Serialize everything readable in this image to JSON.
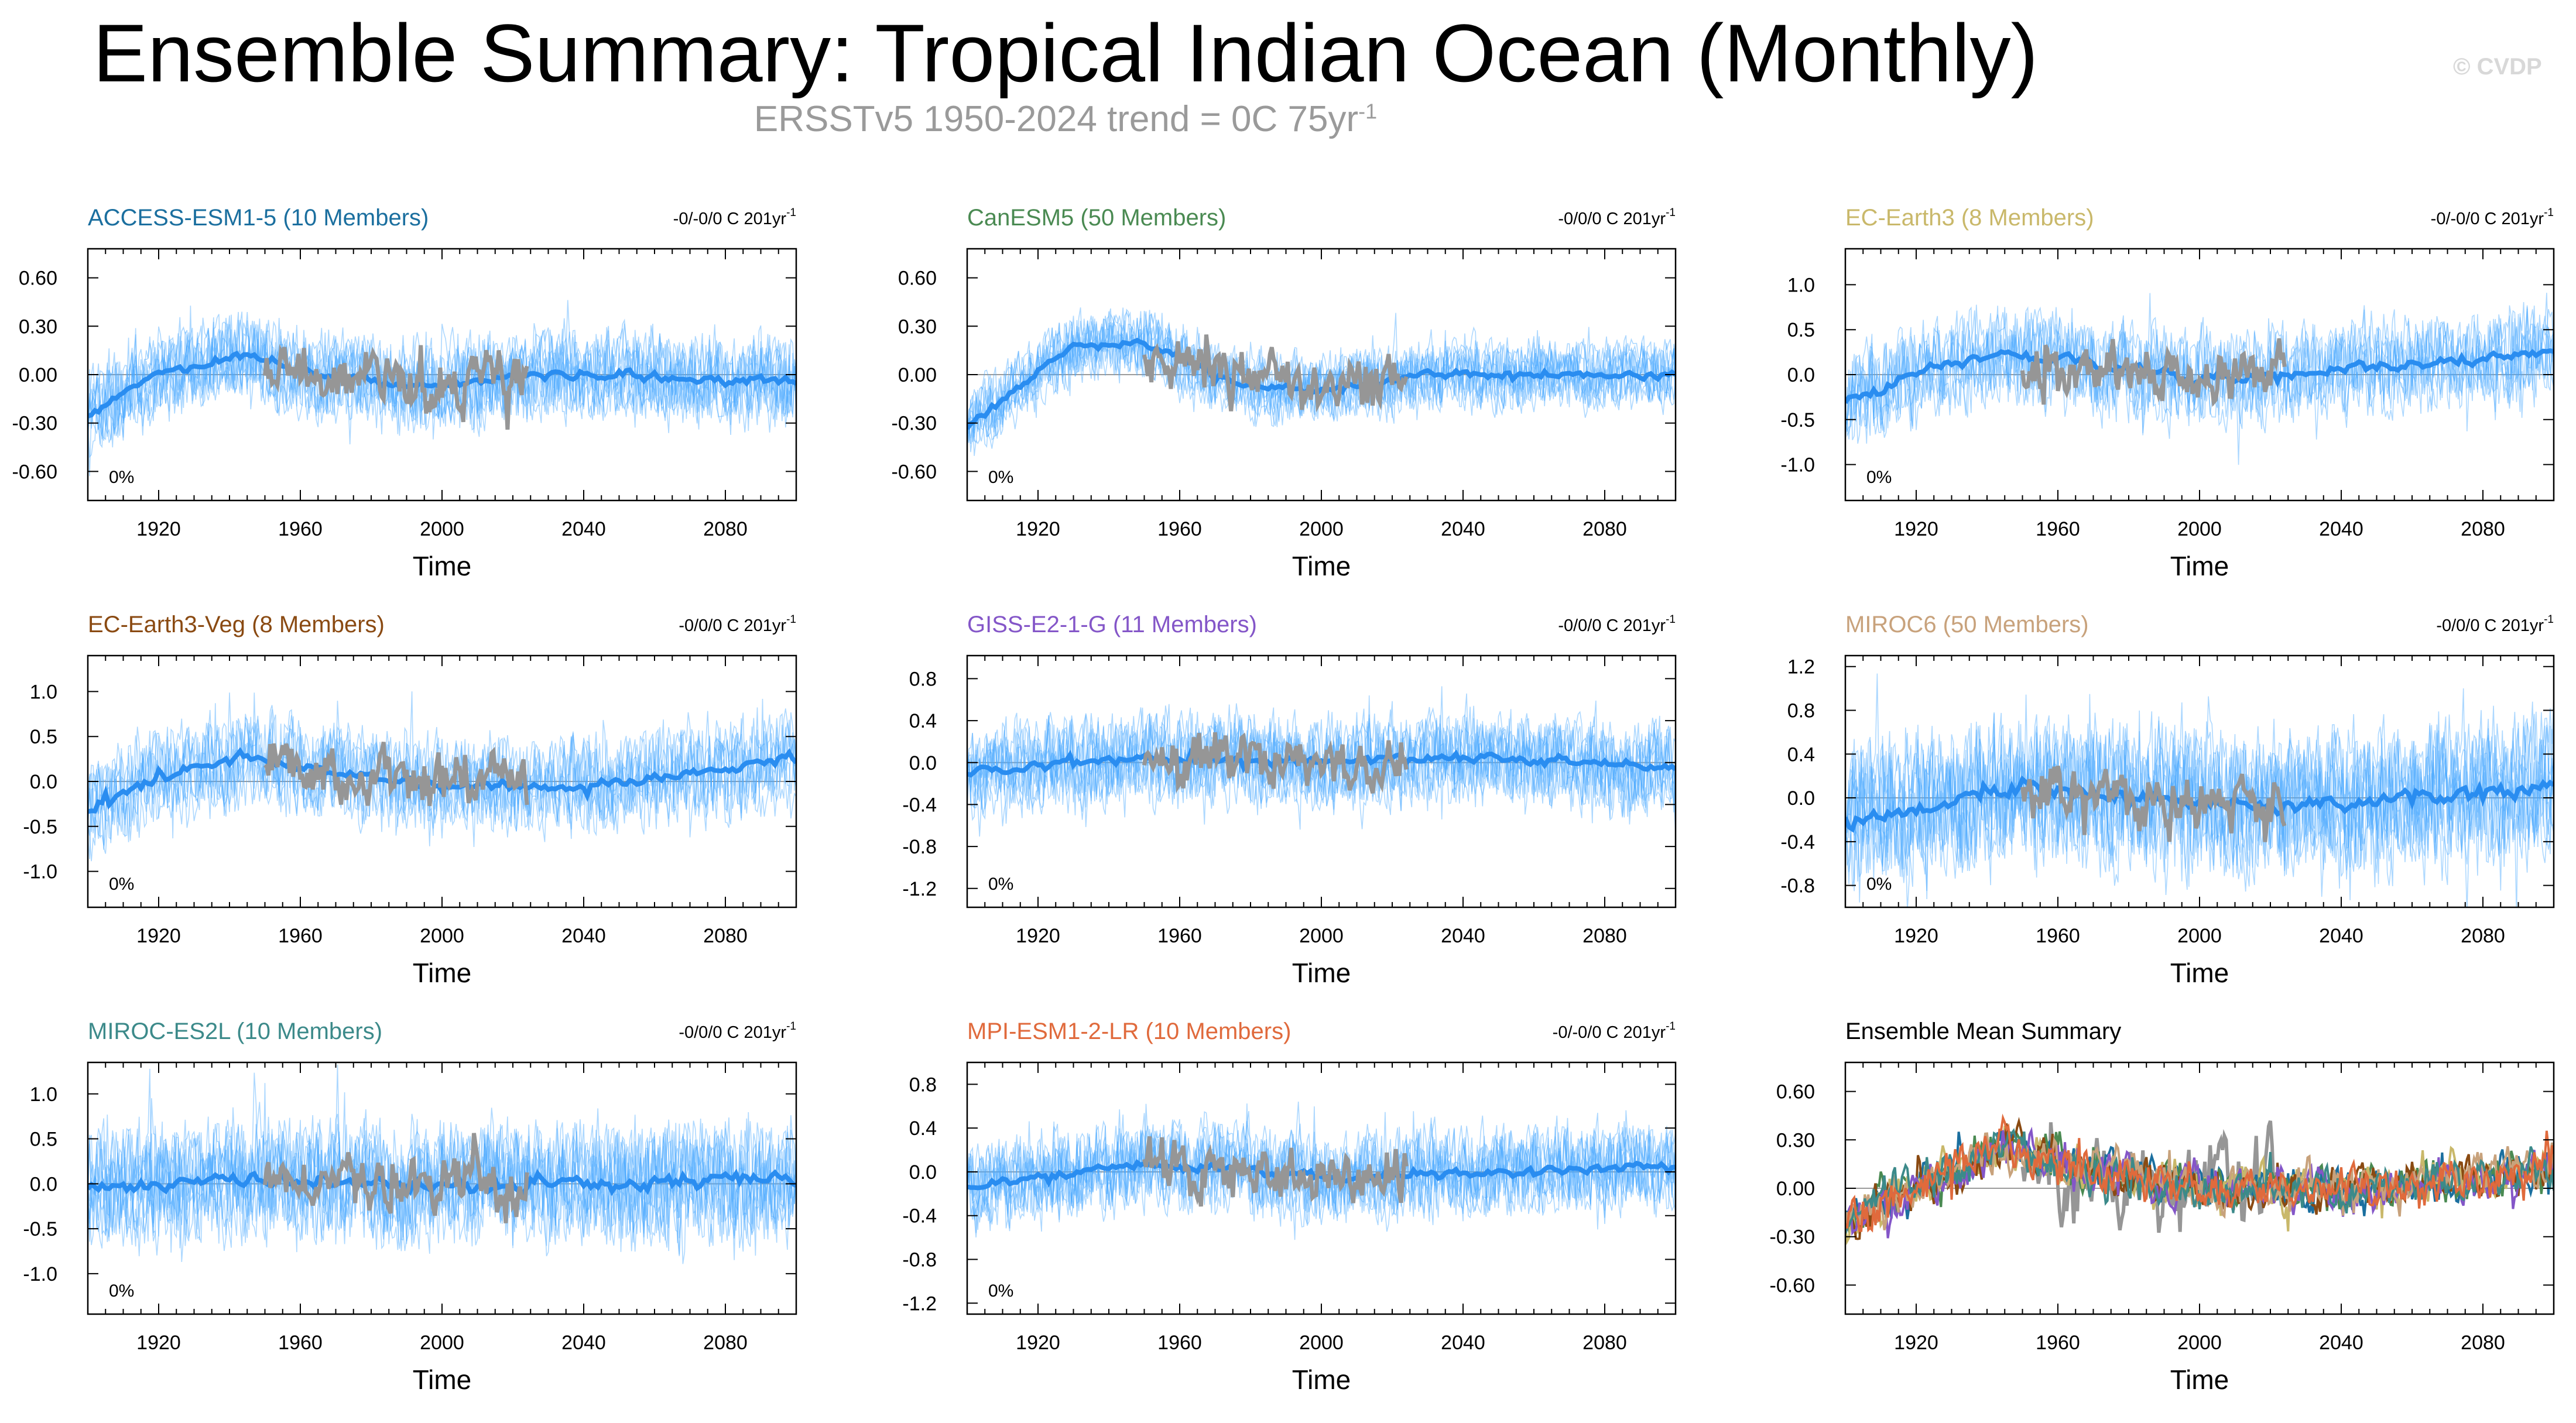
{
  "title": "Ensemble Summary: Tropical Indian Ocean (Monthly)",
  "subtitle_base": "ERSSTv5 1950-2024 trend = 0C 75yr",
  "subtitle_sup": "-1",
  "copyright": "© CVDP",
  "colors": {
    "member": "#4aa8ff",
    "ensemble_mean": "#2a8df0",
    "observations": "#969696"
  },
  "chart_data": [
    {
      "type": "line",
      "title": "ACCESS-ESM1-5 (10 Members)",
      "title_color": "#1b6f9f",
      "trend_label": "-0/-0/0 C 201yr",
      "trend_sup": "-1",
      "percent_label": "0%",
      "xlabel": "Time",
      "xlim": [
        1900,
        2100
      ],
      "xticks": [
        1920,
        1960,
        2000,
        2040,
        2080
      ],
      "ylim": [
        -0.78,
        0.78
      ],
      "yticks": [
        -0.6,
        -0.3,
        0.0,
        0.3,
        0.6
      ],
      "ytick_labels": [
        "-0.60",
        "-0.30",
        "0.00",
        "0.30",
        "0.60"
      ],
      "members": 10,
      "member_amplitude": 0.2,
      "mean_profile": {
        "x": [
          1900,
          1920,
          1945,
          1960,
          1990,
          2030,
          2100
        ],
        "y": [
          -0.25,
          0.0,
          0.12,
          0.02,
          -0.08,
          0.0,
          -0.05
        ]
      },
      "obs_range": [
        1950,
        2024
      ],
      "obs_amplitude": 0.45
    },
    {
      "type": "line",
      "title": "CanESM5 (50 Members)",
      "title_color": "#4a8a52",
      "trend_label": "-0/0/0 C 201yr",
      "trend_sup": "-1",
      "percent_label": "0%",
      "xlabel": "Time",
      "xlim": [
        1900,
        2100
      ],
      "xticks": [
        1920,
        1960,
        2000,
        2040,
        2080
      ],
      "ylim": [
        -0.78,
        0.78
      ],
      "yticks": [
        -0.6,
        -0.3,
        0.0,
        0.3,
        0.6
      ],
      "ytick_labels": [
        "-0.60",
        "-0.30",
        "0.00",
        "0.30",
        "0.60"
      ],
      "members": 50,
      "member_amplitude": 0.16,
      "mean_profile": {
        "x": [
          1900,
          1930,
          1950,
          1975,
          2000,
          2030,
          2100
        ],
        "y": [
          -0.32,
          0.18,
          0.2,
          -0.05,
          -0.1,
          0.0,
          0.0
        ]
      },
      "obs_range": [
        1950,
        2024
      ],
      "obs_amplitude": 0.45
    },
    {
      "type": "line",
      "title": "EC-Earth3 (8 Members)",
      "title_color": "#c9b86a",
      "trend_label": "-0/-0/0 C 201yr",
      "trend_sup": "-1",
      "percent_label": "0%",
      "xlabel": "Time",
      "xlim": [
        1900,
        2100
      ],
      "xticks": [
        1920,
        1960,
        2000,
        2040,
        2080
      ],
      "ylim": [
        -1.4,
        1.4
      ],
      "yticks": [
        -1.0,
        -0.5,
        0.0,
        0.5,
        1.0
      ],
      "ytick_labels": [
        "-1.0",
        "-0.5",
        "0.0",
        "0.5",
        "1.0"
      ],
      "members": 8,
      "member_amplitude": 0.4,
      "mean_profile": {
        "x": [
          1900,
          1920,
          1945,
          1970,
          2000,
          2040,
          2100
        ],
        "y": [
          -0.3,
          0.0,
          0.25,
          0.1,
          -0.05,
          0.05,
          0.25
        ]
      },
      "obs_range": [
        1950,
        2024
      ],
      "obs_amplitude": 0.45
    },
    {
      "type": "line",
      "title": "EC-Earth3-Veg (8 Members)",
      "title_color": "#8a4a12",
      "trend_label": "-0/0/0 C 201yr",
      "trend_sup": "-1",
      "percent_label": "0%",
      "xlabel": "Time",
      "xlim": [
        1900,
        2100
      ],
      "xticks": [
        1920,
        1960,
        2000,
        2040,
        2080
      ],
      "ylim": [
        -1.4,
        1.4
      ],
      "yticks": [
        -1.0,
        -0.5,
        0.0,
        0.5,
        1.0
      ],
      "ytick_labels": [
        "-1.0",
        "-0.5",
        "0.0",
        "0.5",
        "1.0"
      ],
      "members": 8,
      "member_amplitude": 0.4,
      "mean_profile": {
        "x": [
          1900,
          1920,
          1945,
          1970,
          2000,
          2040,
          2100
        ],
        "y": [
          -0.35,
          0.05,
          0.3,
          0.1,
          -0.05,
          -0.05,
          0.25
        ]
      },
      "obs_range": [
        1950,
        2024
      ],
      "obs_amplitude": 0.45
    },
    {
      "type": "line",
      "title": "GISS-E2-1-G (11 Members)",
      "title_color": "#8456c8",
      "trend_label": "-0/0/0 C 201yr",
      "trend_sup": "-1",
      "percent_label": "0%",
      "xlabel": "Time",
      "xlim": [
        1900,
        2100
      ],
      "xticks": [
        1920,
        1960,
        2000,
        2040,
        2080
      ],
      "ylim": [
        -1.38,
        1.02
      ],
      "yticks": [
        -1.2,
        -0.8,
        -0.4,
        0.0,
        0.4,
        0.8
      ],
      "ytick_labels": [
        "-1.2",
        "-0.8",
        "-0.4",
        "0.0",
        "0.4",
        "0.8"
      ],
      "members": 11,
      "member_amplitude": 0.32,
      "mean_profile": {
        "x": [
          1900,
          1950,
          2000,
          2050,
          2100
        ],
        "y": [
          -0.1,
          0.05,
          0.0,
          0.05,
          -0.05
        ]
      },
      "obs_range": [
        1950,
        2024
      ],
      "obs_amplitude": 0.45
    },
    {
      "type": "line",
      "title": "MIROC6 (50 Members)",
      "title_color": "#c8a27c",
      "trend_label": "-0/0/0 C 201yr",
      "trend_sup": "-1",
      "percent_label": "0%",
      "xlabel": "Time",
      "xlim": [
        1900,
        2100
      ],
      "xticks": [
        1920,
        1960,
        2000,
        2040,
        2080
      ],
      "ylim": [
        -1.0,
        1.3
      ],
      "yticks": [
        -0.8,
        -0.4,
        0.0,
        0.4,
        0.8,
        1.2
      ],
      "ytick_labels": [
        "-0.8",
        "-0.4",
        "0.0",
        "0.4",
        "0.8",
        "1.2"
      ],
      "members": 50,
      "member_amplitude": 0.5,
      "mean_profile": {
        "x": [
          1900,
          1950,
          2000,
          2050,
          2100
        ],
        "y": [
          -0.2,
          0.1,
          -0.05,
          -0.05,
          0.1
        ]
      },
      "obs_range": [
        1950,
        2024
      ],
      "obs_amplitude": 0.45
    },
    {
      "type": "line",
      "title": "MIROC-ES2L (10 Members)",
      "title_color": "#3c8a8a",
      "trend_label": "-0/0/0 C 201yr",
      "trend_sup": "-1",
      "percent_label": "0%",
      "xlabel": "Time",
      "xlim": [
        1900,
        2100
      ],
      "xticks": [
        1920,
        1960,
        2000,
        2040,
        2080
      ],
      "ylim": [
        -1.45,
        1.35
      ],
      "yticks": [
        -1.0,
        -0.5,
        0.0,
        0.5,
        1.0
      ],
      "ytick_labels": [
        "-1.0",
        "-0.5",
        "0.0",
        "0.5",
        "1.0"
      ],
      "members": 10,
      "member_amplitude": 0.5,
      "mean_profile": {
        "x": [
          1900,
          1950,
          2000,
          2050,
          2100
        ],
        "y": [
          -0.05,
          0.05,
          0.0,
          0.0,
          0.05
        ]
      },
      "obs_range": [
        1950,
        2024
      ],
      "obs_amplitude": 0.45
    },
    {
      "type": "line",
      "title": "MPI-ESM1-2-LR (10 Members)",
      "title_color": "#e06a3c",
      "trend_label": "-0/-0/0 C 201yr",
      "trend_sup": "-1",
      "percent_label": "0%",
      "xlabel": "Time",
      "xlim": [
        1900,
        2100
      ],
      "xticks": [
        1920,
        1960,
        2000,
        2040,
        2080
      ],
      "ylim": [
        -1.3,
        1.0
      ],
      "yticks": [
        -1.2,
        -0.8,
        -0.4,
        0.0,
        0.4,
        0.8
      ],
      "ytick_labels": [
        "-1.2",
        "-0.8",
        "-0.4",
        "0.0",
        "0.4",
        "0.8"
      ],
      "members": 10,
      "member_amplitude": 0.3,
      "mean_profile": {
        "x": [
          1900,
          1950,
          2000,
          2050,
          2100
        ],
        "y": [
          -0.15,
          0.1,
          -0.05,
          0.0,
          0.05
        ]
      },
      "obs_range": [
        1950,
        2024
      ],
      "obs_amplitude": 0.45
    },
    {
      "type": "line",
      "title": "Ensemble Mean Summary",
      "title_color": "#000000",
      "xlabel": "Time",
      "xlim": [
        1900,
        2100
      ],
      "xticks": [
        1920,
        1960,
        2000,
        2040,
        2080
      ],
      "ylim": [
        -0.78,
        0.78
      ],
      "yticks": [
        -0.6,
        -0.3,
        0.0,
        0.3,
        0.6
      ],
      "ytick_labels": [
        "-0.60",
        "-0.30",
        "0.00",
        "0.30",
        "0.60"
      ],
      "summary_series": [
        {
          "name": "ACCESS-ESM1-5",
          "color": "#1b6f9f"
        },
        {
          "name": "CanESM5",
          "color": "#4a8a52"
        },
        {
          "name": "EC-Earth3",
          "color": "#c9b86a"
        },
        {
          "name": "EC-Earth3-Veg",
          "color": "#8a4a12"
        },
        {
          "name": "GISS-E2-1-G",
          "color": "#8456c8"
        },
        {
          "name": "MIROC6",
          "color": "#c8a27c"
        },
        {
          "name": "MIROC-ES2L",
          "color": "#3c8a8a"
        },
        {
          "name": "MPI-ESM1-2-LR",
          "color": "#e06a3c"
        }
      ],
      "summary_profile": {
        "x": [
          1900,
          1925,
          1945,
          1965,
          2000,
          2050,
          2100
        ],
        "y": [
          -0.22,
          0.05,
          0.28,
          0.12,
          0.0,
          0.0,
          0.12
        ]
      },
      "obs_range": [
        1950,
        2024
      ],
      "obs_amplitude": 0.5
    }
  ]
}
